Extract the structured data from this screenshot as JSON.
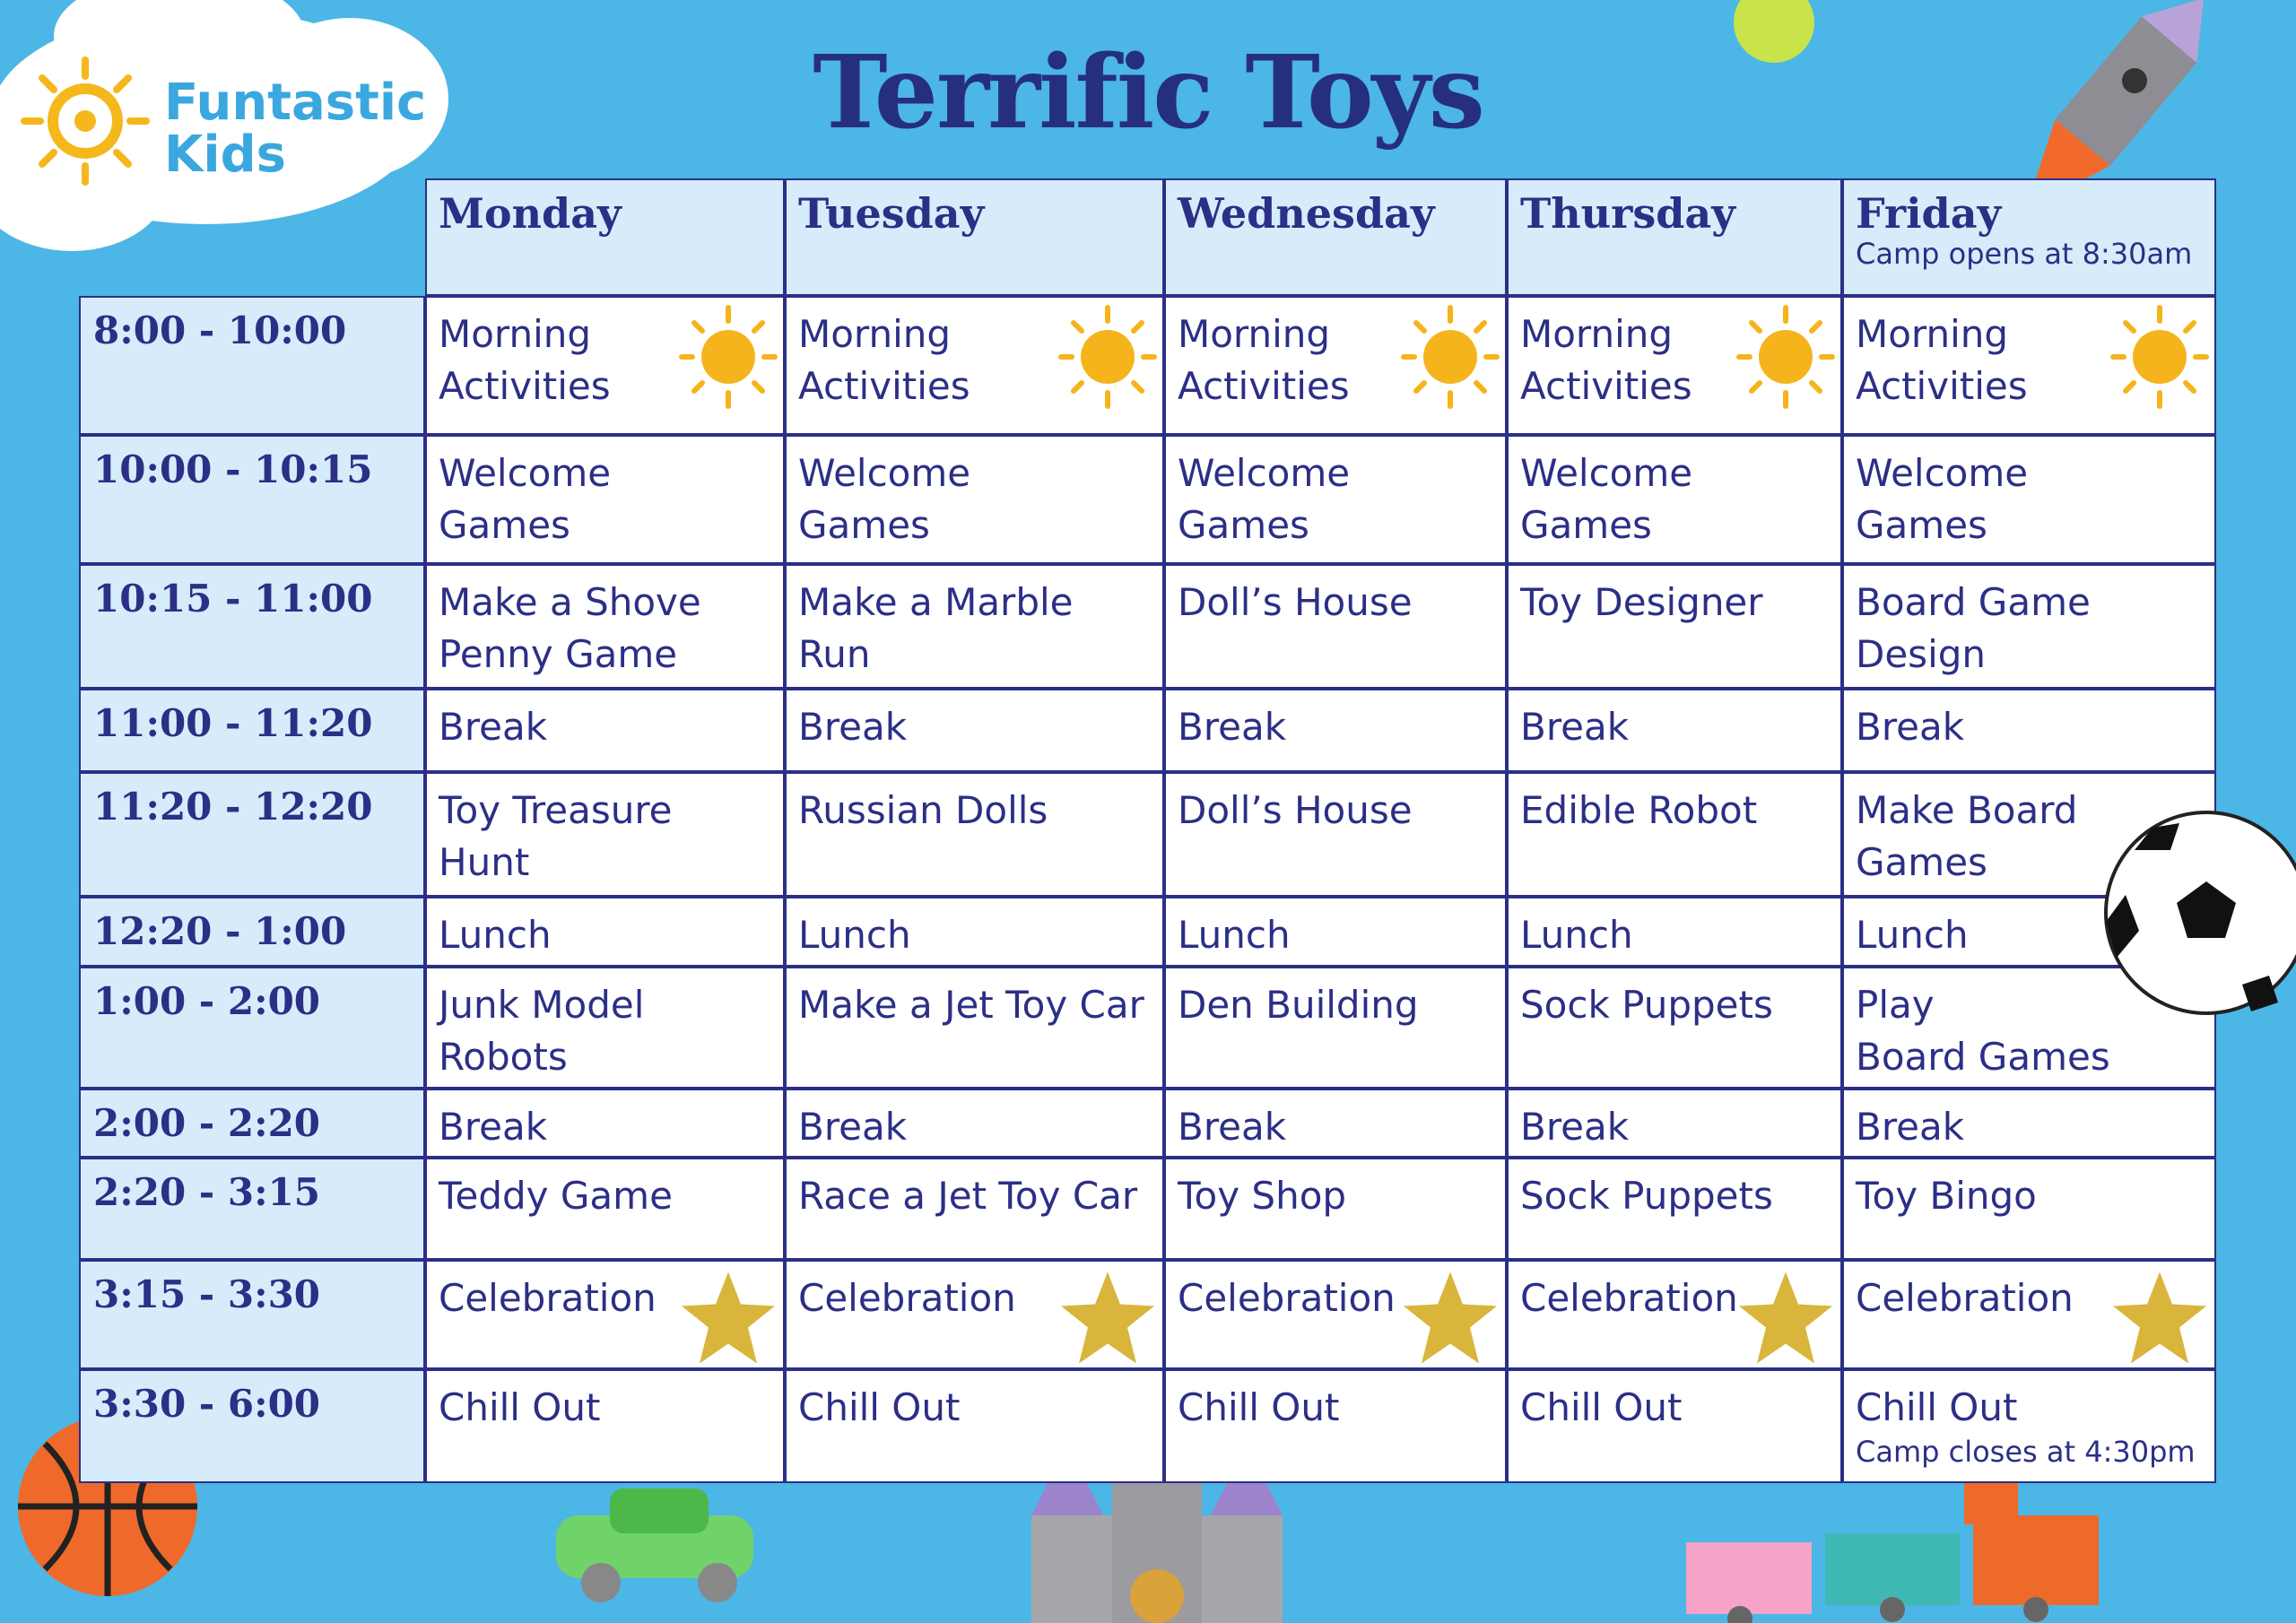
{
  "logo": {
    "line1": "Funtastic",
    "line2": "Kids"
  },
  "title": "Terrific Toys",
  "table": {
    "columns": [
      {
        "day": "Monday"
      },
      {
        "day": "Tuesday"
      },
      {
        "day": "Wednesday"
      },
      {
        "day": "Thursday"
      },
      {
        "day": "Friday",
        "note": "Camp opens at 8:30am"
      }
    ],
    "rows": [
      {
        "time": "8:00 - 10:00",
        "cells": [
          "Morning\nActivities",
          "Morning\nActivities",
          "Morning\nActivities",
          "Morning\nActivities",
          "Morning\nActivities"
        ]
      },
      {
        "time": "10:00 - 10:15",
        "cells": [
          "Welcome\nGames",
          "Welcome\nGames",
          "Welcome\nGames",
          "Welcome\nGames",
          "Welcome\nGames"
        ]
      },
      {
        "time": "10:15 - 11:00",
        "cells": [
          "Make a Shove\nPenny Game",
          "Make a Marble Run",
          "Doll’s House",
          "Toy Designer",
          "Board Game\nDesign"
        ]
      },
      {
        "time": "11:00 - 11:20",
        "cells": [
          "Break",
          "Break",
          "Break",
          "Break",
          "Break"
        ]
      },
      {
        "time": "11:20 - 12:20",
        "cells": [
          "Toy Treasure Hunt",
          "Russian Dolls",
          "Doll’s House",
          "Edible Robot",
          "Make Board\nGames"
        ]
      },
      {
        "time": "12:20 - 1:00",
        "cells": [
          "Lunch",
          "Lunch",
          "Lunch",
          "Lunch",
          "Lunch"
        ]
      },
      {
        "time": "1:00 - 2:00",
        "cells": [
          "Junk Model\nRobots",
          "Make a Jet Toy Car",
          "Den Building",
          "Sock Puppets",
          "Play\nBoard Games"
        ]
      },
      {
        "time": "2:00 - 2:20",
        "cells": [
          "Break",
          "Break",
          "Break",
          "Break",
          "Break"
        ]
      },
      {
        "time": "2:20 - 3:15",
        "cells": [
          "Teddy Game",
          "Race a Jet Toy Car",
          "Toy Shop",
          "Sock Puppets",
          "Toy Bingo"
        ]
      },
      {
        "time": "3:15 - 3:30",
        "cells": [
          "Celebration",
          "Celebration",
          "Celebration",
          "Celebration",
          "Celebration"
        ]
      },
      {
        "time": "3:30 - 6:00",
        "cells": [
          "Chill Out",
          "Chill Out",
          "Chill Out",
          "Chill Out",
          "Chill Out"
        ],
        "note": "Camp closes at 4:30pm"
      }
    ]
  }
}
